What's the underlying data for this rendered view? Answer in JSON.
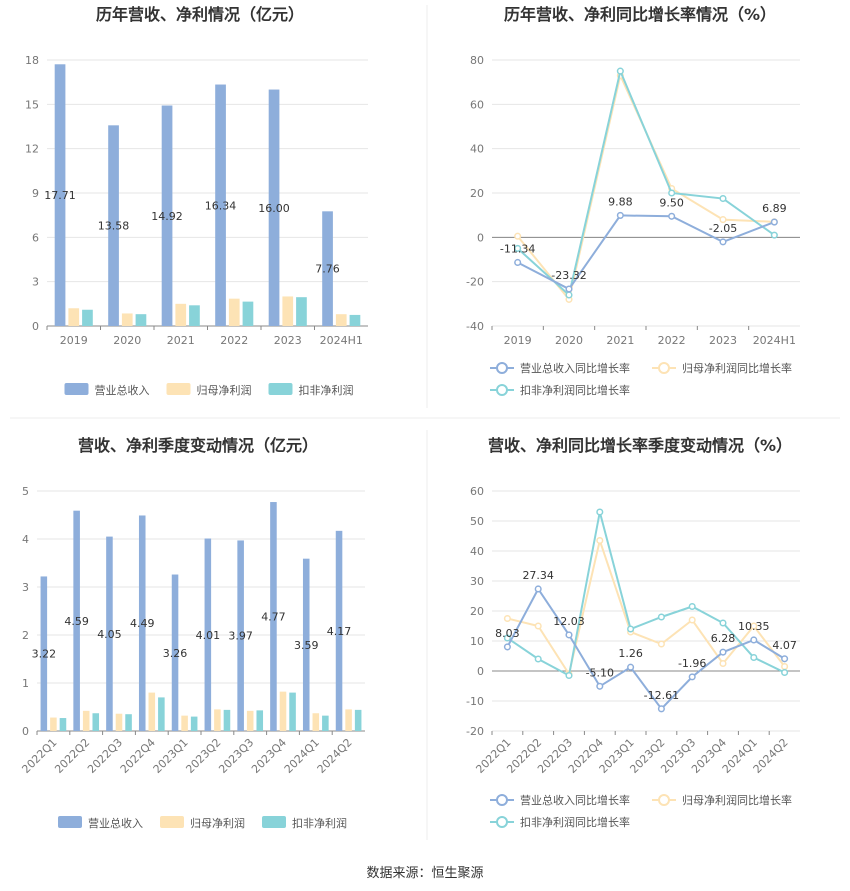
{
  "source": "数据来源：恒生聚源",
  "colors": {
    "revenue": "#8eaedb",
    "parent_profit": "#fde3b5",
    "deducted_profit": "#88d3d9",
    "line_revenue": "#8eaedb",
    "line_parent": "#fde3b5",
    "line_deducted": "#88d3d9"
  },
  "chart_data": [
    {
      "type": "bar",
      "title": "历年营收、净利情况（亿元）",
      "categories": [
        "2019",
        "2020",
        "2021",
        "2022",
        "2023",
        "2024H1"
      ],
      "ylim": [
        0,
        18
      ],
      "yticks": [
        0,
        3,
        6,
        9,
        12,
        15,
        18
      ],
      "legend_position": "bottom",
      "series": [
        {
          "name": "营业总收入",
          "values": [
            17.71,
            13.58,
            14.92,
            16.34,
            16.0,
            7.76
          ],
          "labels": [
            "17.71",
            "13.58",
            "14.92",
            "16.34",
            "16.00",
            "7.76"
          ]
        },
        {
          "name": "归母净利润",
          "values": [
            1.2,
            0.85,
            1.5,
            1.85,
            2.0,
            0.8
          ]
        },
        {
          "name": "扣非净利润",
          "values": [
            1.1,
            0.8,
            1.4,
            1.65,
            1.95,
            0.75
          ]
        }
      ]
    },
    {
      "type": "line",
      "title": "历年营收、净利同比增长率情况（%）",
      "categories": [
        "2019",
        "2020",
        "2021",
        "2022",
        "2023",
        "2024H1"
      ],
      "ylim": [
        -40,
        80
      ],
      "yticks": [
        -40,
        -20,
        0,
        20,
        40,
        60,
        80
      ],
      "legend_position": "bottom",
      "series": [
        {
          "name": "营业总收入同比增长率",
          "values": [
            -11.34,
            -23.32,
            9.88,
            9.5,
            -2.05,
            6.89
          ],
          "labels": [
            "-11.34",
            "-23.32",
            "9.88",
            "9.50",
            "-2.05",
            "6.89"
          ]
        },
        {
          "name": "归母净利润同比增长率",
          "values": [
            0.5,
            -28,
            73,
            22,
            8,
            7
          ]
        },
        {
          "name": "扣非净利润同比增长率",
          "values": [
            -5,
            -26,
            75,
            20,
            17.5,
            1
          ]
        }
      ]
    },
    {
      "type": "bar",
      "title": "营收、净利季度变动情况（亿元）",
      "categories": [
        "2022Q1",
        "2022Q2",
        "2022Q3",
        "2022Q4",
        "2023Q1",
        "2023Q2",
        "2023Q3",
        "2023Q4",
        "2024Q1",
        "2024Q2"
      ],
      "ylim": [
        0,
        5
      ],
      "yticks": [
        0,
        1,
        2,
        3,
        4,
        5
      ],
      "legend_position": "bottom",
      "series": [
        {
          "name": "营业总收入",
          "values": [
            3.22,
            4.59,
            4.05,
            4.49,
            3.26,
            4.01,
            3.97,
            4.77,
            3.59,
            4.17
          ],
          "labels": [
            "3.22",
            "4.59",
            "4.05",
            "4.49",
            "3.26",
            "4.01",
            "3.97",
            "4.77",
            "3.59",
            "4.17"
          ]
        },
        {
          "name": "归母净利润",
          "values": [
            0.28,
            0.42,
            0.36,
            0.8,
            0.32,
            0.45,
            0.42,
            0.82,
            0.37,
            0.45
          ]
        },
        {
          "name": "扣非净利润",
          "values": [
            0.27,
            0.37,
            0.35,
            0.7,
            0.3,
            0.44,
            0.43,
            0.8,
            0.32,
            0.44
          ]
        }
      ]
    },
    {
      "type": "line",
      "title": "营收、净利同比增长率季度变动情况（%）",
      "categories": [
        "2022Q1",
        "2022Q2",
        "2022Q3",
        "2022Q4",
        "2023Q1",
        "2023Q2",
        "2023Q3",
        "2023Q4",
        "2024Q1",
        "2024Q2"
      ],
      "ylim": [
        -20,
        60
      ],
      "yticks": [
        -20,
        -10,
        0,
        10,
        20,
        30,
        40,
        50,
        60
      ],
      "legend_position": "bottom",
      "series": [
        {
          "name": "营业总收入同比增长率",
          "values": [
            8.03,
            27.34,
            12.03,
            -5.1,
            1.26,
            -12.61,
            -1.96,
            6.28,
            10.35,
            4.07
          ],
          "labels": [
            "8.03",
            "27.34",
            "12.03",
            "-5.10",
            "1.26",
            "-12.61",
            "-1.96",
            "6.28",
            "10.35",
            "4.07"
          ]
        },
        {
          "name": "归母净利润同比增长率",
          "values": [
            17.5,
            15,
            -1,
            43.5,
            13,
            9,
            17,
            2.5,
            15,
            1.5
          ]
        },
        {
          "name": "扣非净利润同比增长率",
          "values": [
            11,
            4,
            -1.5,
            53,
            14,
            18,
            21.5,
            16,
            4.5,
            -0.5
          ]
        }
      ]
    }
  ]
}
